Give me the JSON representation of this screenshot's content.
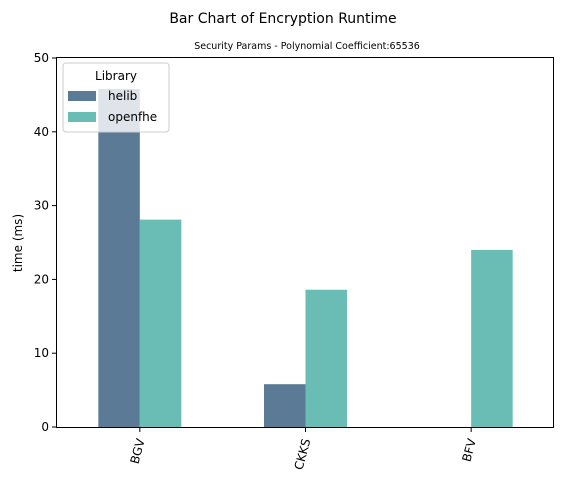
{
  "chart_data": {
    "type": "bar",
    "title": "Bar Chart of Encryption Runtime",
    "subtitle": "Security Params - Polynomial Coefficient:65536",
    "xlabel": "",
    "ylabel": "time (ms)",
    "ylim": [
      0,
      50
    ],
    "yticks": [
      "0",
      "10",
      "20",
      "30",
      "40",
      "50"
    ],
    "categories": [
      "BGV",
      "CKKS",
      "BFV"
    ],
    "series": [
      {
        "name": "helib",
        "values": [
          45.8,
          5.8,
          null
        ],
        "color": "#5a7a96"
      },
      {
        "name": "openfhe",
        "values": [
          28.1,
          18.6,
          24.0
        ],
        "color": "#69bdb5"
      }
    ],
    "legend": {
      "title": "Library",
      "placement": "top-left"
    },
    "grid": false
  }
}
